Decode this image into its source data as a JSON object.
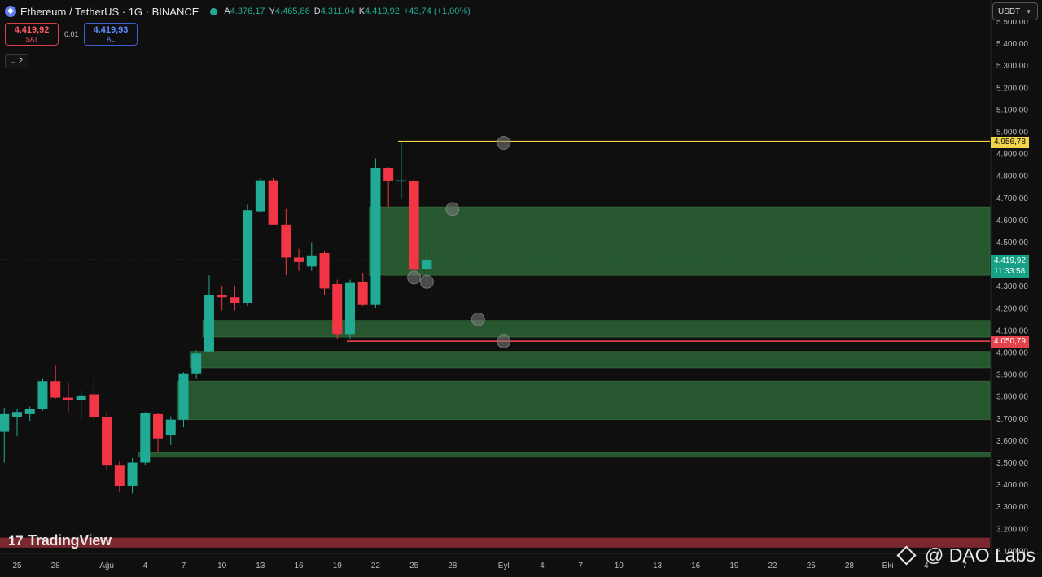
{
  "header": {
    "symbol_title": "Ethereum / TetherUS · 1G · BINANCE",
    "coin_icon": "ethereum-icon",
    "ohlc": [
      {
        "key": "A",
        "value": "4.376,17"
      },
      {
        "key": "Y",
        "value": "4.465,86"
      },
      {
        "key": "D",
        "value": "4.311,04"
      },
      {
        "key": "K",
        "value": "4.419,92"
      },
      {
        "key": "",
        "value": "+43,74 (+1,00%)"
      }
    ]
  },
  "trade": {
    "sell_price": "4.419,92",
    "sell_label": "SAT",
    "spread": "0,01",
    "buy_price": "4.419,93",
    "buy_label": "AL"
  },
  "indicators_toggle": "2",
  "currency_button": "USDT",
  "price_labels": {
    "horizontal_yellow": "4.956,78",
    "horizontal_red": "4.050,79",
    "current_price": "4.419,92",
    "countdown": "11:33:58"
  },
  "branding": {
    "tradingview": "TradingView",
    "watermark": "@ DAO Labs"
  },
  "colors": {
    "up": "#22ab94",
    "down": "#f23645",
    "zone": "#2e6b38",
    "yellow_line": "#f0d54a",
    "red_line": "#e6424b",
    "bottom_band": "#7a2730",
    "background": "#0f0f0f"
  },
  "chart_data": {
    "type": "candlestick",
    "y_axis_ticks": [
      "5.500,00",
      "5.400,00",
      "5.300,00",
      "5.200,00",
      "5.100,00",
      "5.000,00",
      "4.900,00",
      "4.800,00",
      "4.700,00",
      "4.600,00",
      "4.500,00",
      "4.400,00",
      "4.300,00",
      "4.200,00",
      "4.100,00",
      "4.000,00",
      "3.900,00",
      "3.800,00",
      "3.700,00",
      "3.600,00",
      "3.500,00",
      "3.400,00",
      "3.300,00",
      "3.200,00",
      "3.100,00"
    ],
    "x_axis_ticks": [
      {
        "label": "25",
        "day": 0
      },
      {
        "label": "28",
        "day": 3
      },
      {
        "label": "Ağu",
        "day": 7
      },
      {
        "label": "4",
        "day": 10
      },
      {
        "label": "7",
        "day": 13
      },
      {
        "label": "10",
        "day": 16
      },
      {
        "label": "13",
        "day": 19
      },
      {
        "label": "16",
        "day": 22
      },
      {
        "label": "19",
        "day": 25
      },
      {
        "label": "22",
        "day": 28
      },
      {
        "label": "25",
        "day": 31
      },
      {
        "label": "28",
        "day": 34
      },
      {
        "label": "Eyl",
        "day": 38
      },
      {
        "label": "4",
        "day": 41
      },
      {
        "label": "7",
        "day": 44
      },
      {
        "label": "10",
        "day": 47
      },
      {
        "label": "13",
        "day": 50
      },
      {
        "label": "16",
        "day": 53
      },
      {
        "label": "19",
        "day": 56
      },
      {
        "label": "22",
        "day": 59
      },
      {
        "label": "25",
        "day": 62
      },
      {
        "label": "28",
        "day": 65
      },
      {
        "label": "Eki",
        "day": 68
      },
      {
        "label": "4",
        "day": 71
      },
      {
        "label": "7",
        "day": 74
      }
    ],
    "candles": [
      {
        "day": -1,
        "o": 3640,
        "h": 3750,
        "l": 3500,
        "c": 3720
      },
      {
        "day": 0,
        "o": 3705,
        "h": 3745,
        "l": 3620,
        "c": 3730
      },
      {
        "day": 1,
        "o": 3720,
        "h": 3755,
        "l": 3690,
        "c": 3745
      },
      {
        "day": 2,
        "o": 3745,
        "h": 3880,
        "l": 3735,
        "c": 3870
      },
      {
        "day": 3,
        "o": 3870,
        "h": 3940,
        "l": 3790,
        "c": 3795
      },
      {
        "day": 4,
        "o": 3795,
        "h": 3860,
        "l": 3730,
        "c": 3785
      },
      {
        "day": 5,
        "o": 3785,
        "h": 3830,
        "l": 3690,
        "c": 3805
      },
      {
        "day": 6,
        "o": 3810,
        "h": 3880,
        "l": 3690,
        "c": 3705
      },
      {
        "day": 7,
        "o": 3705,
        "h": 3730,
        "l": 3470,
        "c": 3490
      },
      {
        "day": 8,
        "o": 3490,
        "h": 3510,
        "l": 3370,
        "c": 3395
      },
      {
        "day": 9,
        "o": 3395,
        "h": 3520,
        "l": 3360,
        "c": 3500
      },
      {
        "day": 10,
        "o": 3500,
        "h": 3730,
        "l": 3490,
        "c": 3725
      },
      {
        "day": 11,
        "o": 3720,
        "h": 3725,
        "l": 3550,
        "c": 3610
      },
      {
        "day": 12,
        "o": 3625,
        "h": 3710,
        "l": 3580,
        "c": 3695
      },
      {
        "day": 13,
        "o": 3695,
        "h": 3910,
        "l": 3660,
        "c": 3905
      },
      {
        "day": 14,
        "o": 3905,
        "h": 4010,
        "l": 3880,
        "c": 3995
      },
      {
        "day": 15,
        "o": 4005,
        "h": 4350,
        "l": 4000,
        "c": 4260
      },
      {
        "day": 16,
        "o": 4260,
        "h": 4300,
        "l": 4190,
        "c": 4250
      },
      {
        "day": 17,
        "o": 4250,
        "h": 4300,
        "l": 4190,
        "c": 4225
      },
      {
        "day": 18,
        "o": 4225,
        "h": 4670,
        "l": 4210,
        "c": 4645
      },
      {
        "day": 19,
        "o": 4640,
        "h": 4790,
        "l": 4630,
        "c": 4780
      },
      {
        "day": 20,
        "o": 4780,
        "h": 4790,
        "l": 4580,
        "c": 4580
      },
      {
        "day": 21,
        "o": 4580,
        "h": 4650,
        "l": 4350,
        "c": 4430
      },
      {
        "day": 22,
        "o": 4430,
        "h": 4470,
        "l": 4370,
        "c": 4410
      },
      {
        "day": 23,
        "o": 4390,
        "h": 4500,
        "l": 4370,
        "c": 4440
      },
      {
        "day": 24,
        "o": 4450,
        "h": 4460,
        "l": 4260,
        "c": 4290
      },
      {
        "day": 25,
        "o": 4310,
        "h": 4330,
        "l": 4060,
        "c": 4080
      },
      {
        "day": 26,
        "o": 4080,
        "h": 4330,
        "l": 4060,
        "c": 4315
      },
      {
        "day": 27,
        "o": 4320,
        "h": 4360,
        "l": 4210,
        "c": 4215
      },
      {
        "day": 28,
        "o": 4215,
        "h": 4880,
        "l": 4200,
        "c": 4835
      },
      {
        "day": 29,
        "o": 4835,
        "h": 4840,
        "l": 4660,
        "c": 4775
      },
      {
        "day": 30,
        "o": 4775,
        "h": 4956,
        "l": 4700,
        "c": 4780
      },
      {
        "day": 31,
        "o": 4775,
        "h": 4790,
        "l": 4360,
        "c": 4375
      },
      {
        "day": 32,
        "o": 4376.17,
        "h": 4465.86,
        "l": 4311.04,
        "c": 4419.92
      }
    ],
    "zones": [
      {
        "x_from_day": 27.5,
        "top": 4660,
        "bottom": 4350
      },
      {
        "x_from_day": 14.5,
        "top": 4145,
        "bottom": 4070
      },
      {
        "x_from_day": 13.5,
        "top": 4005,
        "bottom": 3930
      },
      {
        "x_from_day": 12.5,
        "top": 3870,
        "bottom": 3695
      },
      {
        "x_from_day": 9.5,
        "top": 3545,
        "bottom": 3525
      }
    ],
    "bottom_band": {
      "top": 3160,
      "bottom": 3115
    },
    "horizontal_lines": [
      {
        "price": 4956.78,
        "from_day": 30,
        "color": "#f0d54a"
      },
      {
        "price": 4050.79,
        "from_day": 26,
        "color": "#e6424b"
      }
    ],
    "markers": [
      {
        "day": 38,
        "price": 4950
      },
      {
        "day": 34,
        "price": 4650
      },
      {
        "day": 31,
        "price": 4340
      },
      {
        "day": 32,
        "price": 4320
      },
      {
        "day": 36,
        "price": 4150
      },
      {
        "day": 38,
        "price": 4050
      }
    ],
    "current_price_line": 4419.92,
    "ylim": [
      3100,
      5520
    ]
  }
}
